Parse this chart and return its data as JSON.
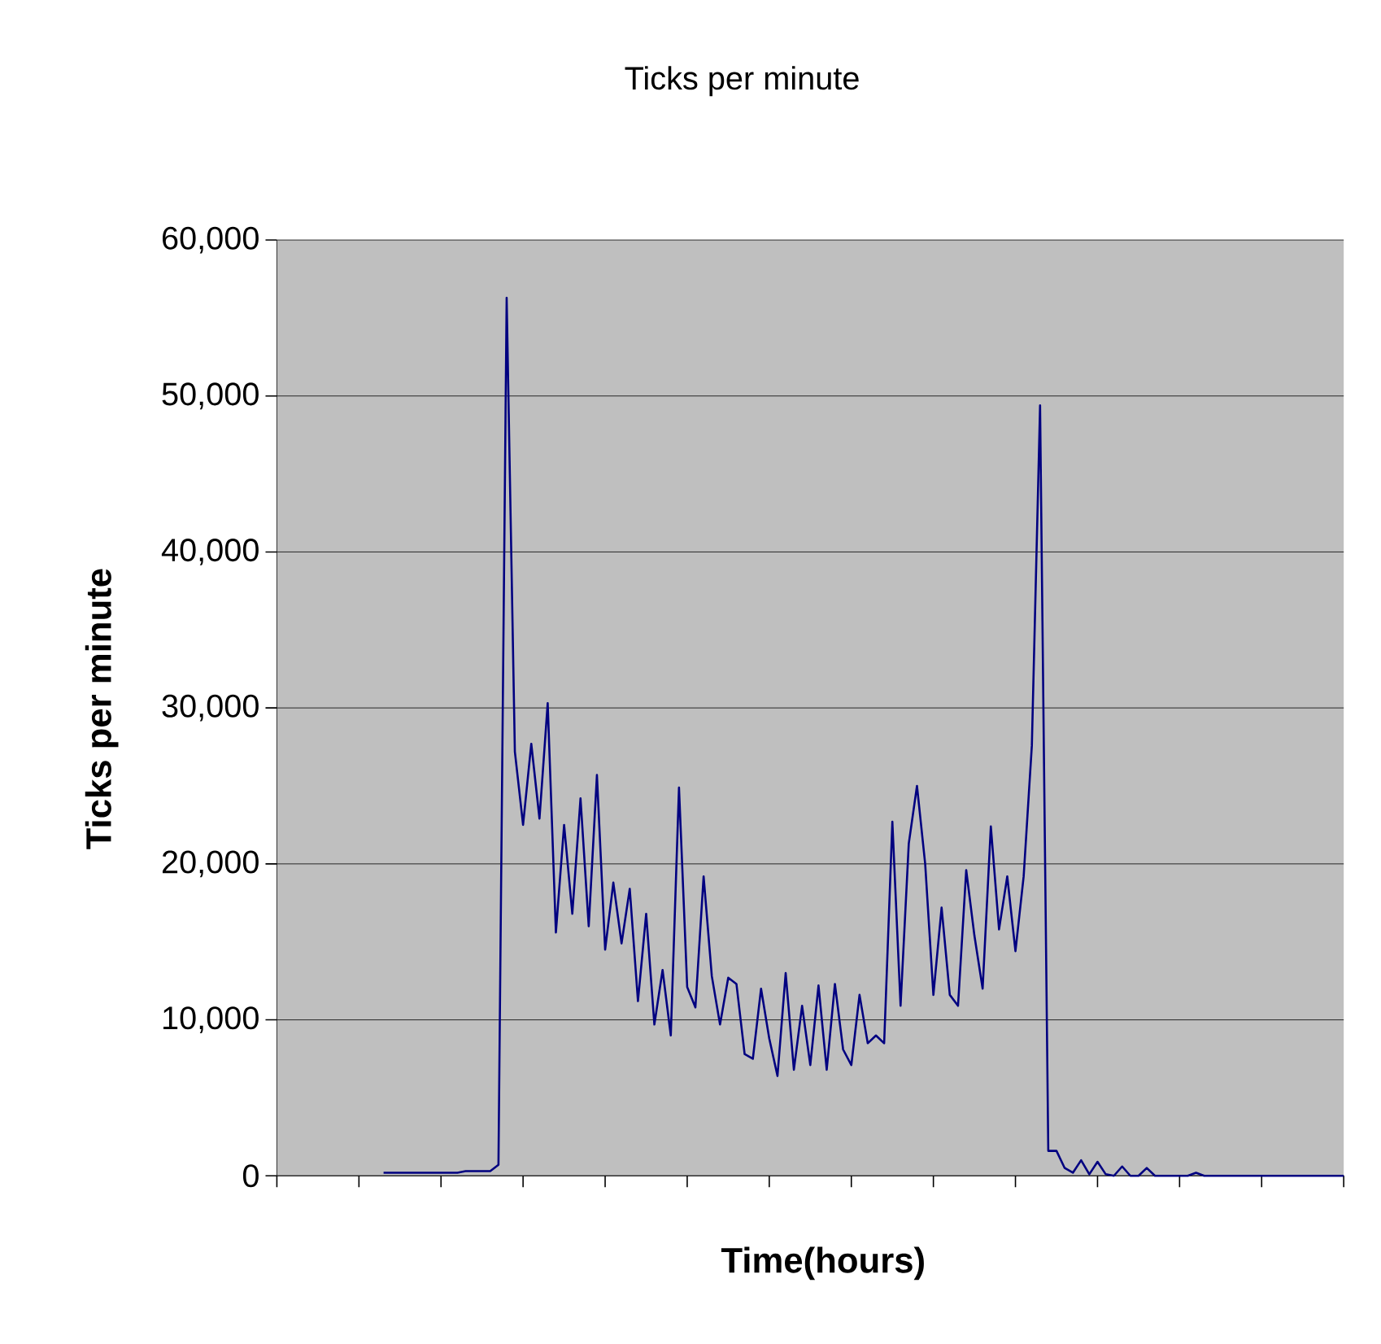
{
  "chart_data": {
    "type": "line",
    "title": "Ticks per minute",
    "xlabel": "Time(hours)",
    "ylabel": "Ticks per minute",
    "categories": [
      null,
      null,
      null,
      null,
      null,
      null,
      null,
      null,
      null,
      null,
      null,
      null,
      null,
      null,
      null,
      null,
      null,
      null,
      null,
      null,
      null,
      null,
      null,
      null,
      null,
      null,
      null,
      null,
      null,
      null,
      null,
      null,
      null,
      null,
      null,
      null,
      null,
      null,
      null,
      null,
      null,
      null,
      null,
      null,
      null,
      null,
      null,
      null,
      null,
      null,
      null,
      null,
      null,
      null,
      null,
      null,
      null,
      null,
      null,
      null,
      null,
      null,
      null,
      null,
      null,
      null,
      null,
      null,
      null,
      null,
      null,
      null,
      null,
      null,
      null,
      null,
      null,
      null,
      null,
      null,
      null,
      null,
      null,
      null,
      null,
      null,
      null,
      null,
      null,
      null,
      null,
      null,
      null,
      null,
      null,
      null,
      null,
      null,
      null,
      null,
      null,
      null,
      null,
      null,
      null,
      null,
      null,
      null,
      null,
      null,
      null,
      null,
      null,
      null,
      null,
      null,
      null,
      null,
      null,
      null,
      null,
      null,
      null,
      null,
      null,
      null,
      null,
      null,
      null,
      null,
      null
    ],
    "ylim": [
      0,
      60000
    ],
    "yticks": [
      0,
      {
        "value": 10000,
        "label": "10,000"
      },
      {
        "value": 20000,
        "label": "20,000"
      },
      {
        "value": 30000,
        "label": "30,000"
      },
      {
        "value": 40000,
        "label": "40,000"
      },
      {
        "value": 50000,
        "label": "50,000"
      },
      {
        "value": 60000,
        "label": "60,000"
      }
    ],
    "grid": "y",
    "marker": "none",
    "line_style": "solid",
    "tick_labels": "y",
    "series": [
      {
        "color": "#000080",
        "values": [
          null,
          null,
          null,
          null,
          null,
          null,
          null,
          null,
          null,
          null,
          null,
          null,
          null,
          200,
          200,
          200,
          200,
          200,
          200,
          200,
          200,
          200,
          200,
          300,
          300,
          300,
          300,
          700,
          56300,
          27200,
          22500,
          27700,
          22900,
          30300,
          15600,
          22500,
          16800,
          24200,
          16000,
          25700,
          14500,
          18800,
          14900,
          18400,
          11200,
          16800,
          9700,
          13200,
          9000,
          24900,
          12100,
          10800,
          19200,
          12800,
          9700,
          12700,
          12300,
          7800,
          7500,
          12000,
          8800,
          6400,
          13000,
          6800,
          10900,
          7100,
          12200,
          6800,
          12300,
          8100,
          7100,
          11600,
          8500,
          9000,
          8500,
          22700,
          10900,
          21300,
          25000,
          20000,
          11600,
          17200,
          11600,
          10900,
          19600,
          15400,
          12000,
          22400,
          15800,
          19200,
          14400,
          19200,
          27600,
          49400,
          1600,
          1600,
          500,
          200,
          1000,
          100,
          900,
          100,
          0,
          600,
          0,
          0,
          500,
          0,
          0,
          0,
          0,
          0,
          200,
          0,
          0,
          0,
          0,
          0,
          0,
          0,
          0,
          0,
          0,
          0,
          0,
          0,
          0,
          0,
          0,
          0,
          0
        ]
      }
    ]
  }
}
